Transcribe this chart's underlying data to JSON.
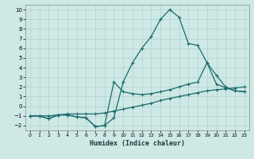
{
  "xlabel": "Humidex (Indice chaleur)",
  "bg_color": "#cde8e5",
  "line_color": "#1a6b6b",
  "grid_color": "#afd4d0",
  "xlim": [
    -0.5,
    23.5
  ],
  "ylim": [
    -2.5,
    10.5
  ],
  "xticks": [
    0,
    1,
    2,
    3,
    4,
    5,
    6,
    7,
    8,
    9,
    10,
    11,
    12,
    13,
    14,
    15,
    16,
    17,
    18,
    19,
    20,
    21,
    22,
    23
  ],
  "yticks": [
    -2,
    -1,
    0,
    1,
    2,
    3,
    4,
    5,
    6,
    7,
    8,
    9,
    10
  ],
  "line1_x": [
    0,
    1,
    2,
    3,
    4,
    5,
    6,
    7,
    8,
    9,
    10,
    11,
    12,
    13,
    14,
    15,
    16,
    17,
    18,
    19,
    20,
    21,
    22,
    23
  ],
  "line1_y": [
    -1,
    -1,
    -1.3,
    -0.9,
    -0.9,
    -1.1,
    -1.2,
    -2.1,
    -2.0,
    -1.2,
    2.5,
    4.5,
    6.0,
    7.2,
    9.0,
    10.0,
    9.2,
    6.5,
    6.3,
    4.5,
    2.3,
    1.9,
    1.6,
    1.5
  ],
  "line2_x": [
    0,
    1,
    2,
    3,
    4,
    5,
    6,
    7,
    8,
    9,
    10,
    11,
    12,
    13,
    14,
    15,
    16,
    17,
    18,
    19,
    20,
    21,
    22,
    23
  ],
  "line2_y": [
    -1,
    -1,
    -1.3,
    -0.9,
    -0.9,
    -1.1,
    -1.2,
    -2.1,
    -2.0,
    2.5,
    1.5,
    1.3,
    1.2,
    1.3,
    1.5,
    1.7,
    2.0,
    2.3,
    2.5,
    4.5,
    3.2,
    2.0,
    1.6,
    1.5
  ],
  "line3_x": [
    0,
    1,
    2,
    3,
    4,
    5,
    6,
    7,
    8,
    9,
    10,
    11,
    12,
    13,
    14,
    15,
    16,
    17,
    18,
    19,
    20,
    21,
    22,
    23
  ],
  "line3_y": [
    -1,
    -1,
    -1.0,
    -0.9,
    -0.8,
    -0.8,
    -0.8,
    -0.8,
    -0.7,
    -0.5,
    -0.3,
    -0.1,
    0.1,
    0.3,
    0.6,
    0.8,
    1.0,
    1.2,
    1.4,
    1.6,
    1.7,
    1.8,
    1.9,
    2.0
  ]
}
